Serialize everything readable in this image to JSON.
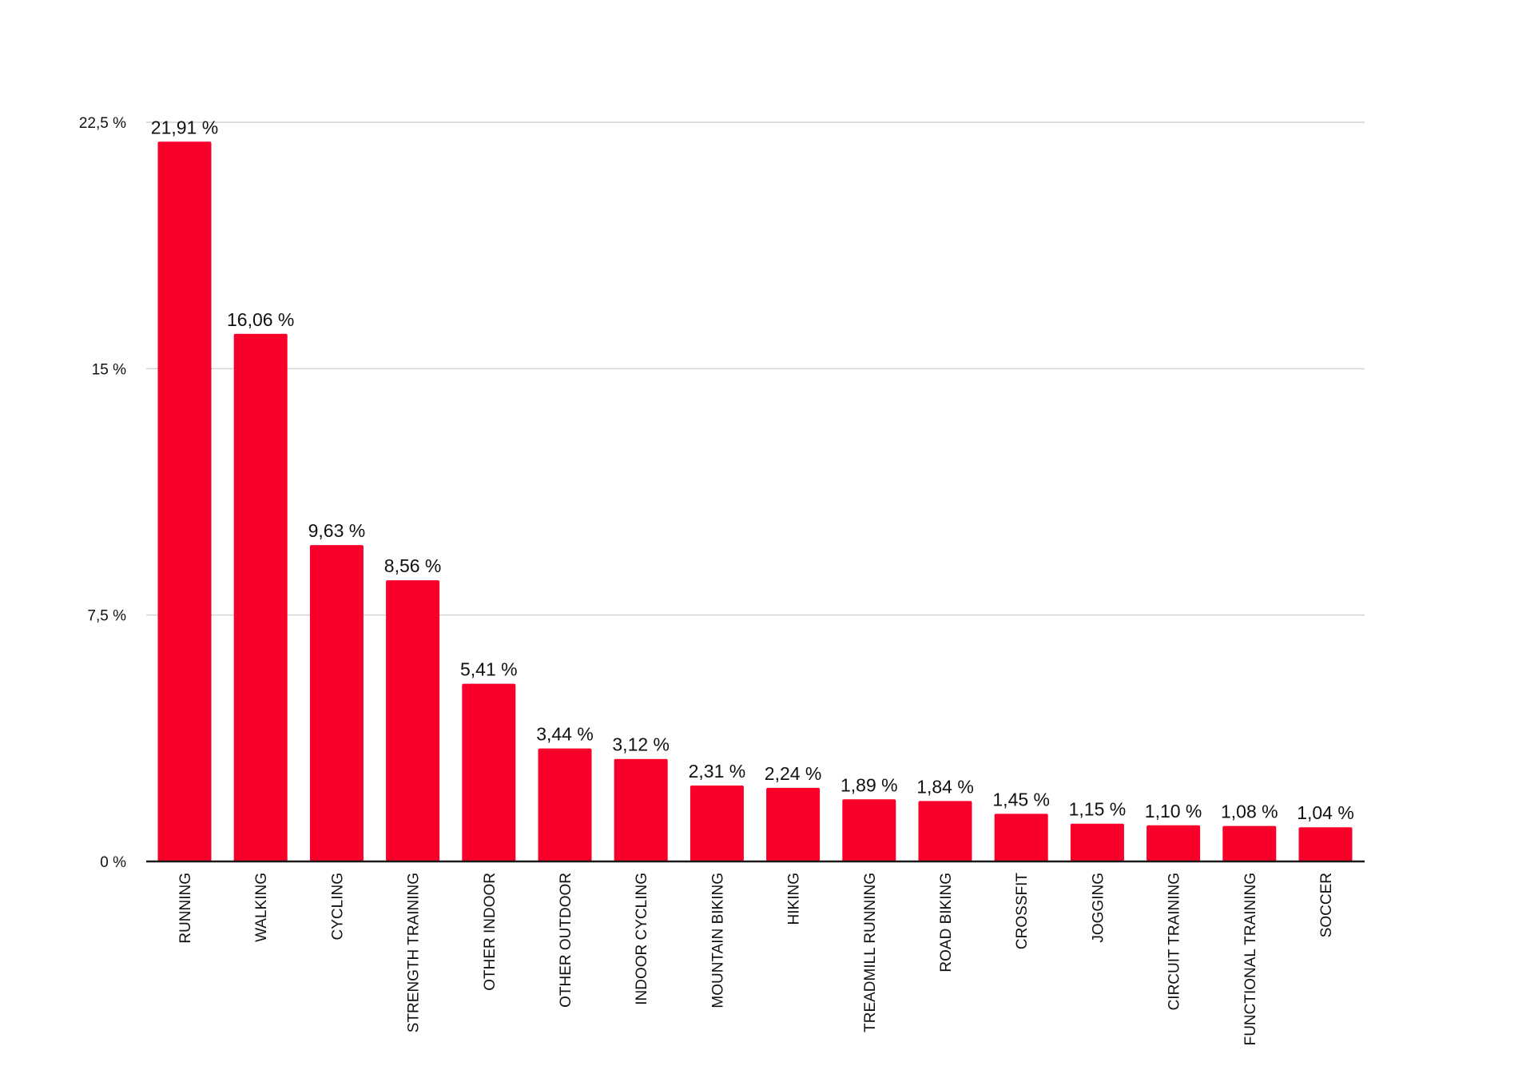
{
  "chart_data": {
    "type": "bar",
    "categories": [
      "RUNNING",
      "WALKING",
      "CYCLING",
      "STRENGTH TRAINING",
      "OTHER INDOOR",
      "OTHER OUTDOOR",
      "INDOOR CYCLING",
      "MOUNTAIN BIKING",
      "HIKING",
      "TREADMILL RUNNING",
      "ROAD BIKING",
      "CROSSFIT",
      "JOGGING",
      "CIRCUIT TRAINING",
      "FUNCTIONAL TRAINING",
      "SOCCER"
    ],
    "values": [
      21.91,
      16.06,
      9.63,
      8.56,
      5.41,
      3.44,
      3.12,
      2.31,
      2.24,
      1.89,
      1.84,
      1.45,
      1.15,
      1.1,
      1.08,
      1.04
    ],
    "data_labels": [
      "21,91 %",
      "16,06 %",
      "9,63 %",
      "8,56 %",
      "5,41 %",
      "3,44 %",
      "3,12 %",
      "2,31 %",
      "2,24 %",
      "1,89 %",
      "1,84 %",
      "1,45 %",
      "1,15 %",
      "1,10 %",
      "1,08 %",
      "1,04 %"
    ],
    "y_ticks": [
      0,
      7.5,
      15,
      22.5
    ],
    "y_tick_labels": [
      "0 %",
      "7,5 %",
      "15 %",
      "22,5 %"
    ],
    "ylim": [
      0,
      22.5
    ],
    "grid": true,
    "legend": "none",
    "colors": {
      "bar": "#f80029",
      "grid": "#d4d4d4",
      "axis": "#1a1a1a",
      "text": "#111111"
    }
  }
}
